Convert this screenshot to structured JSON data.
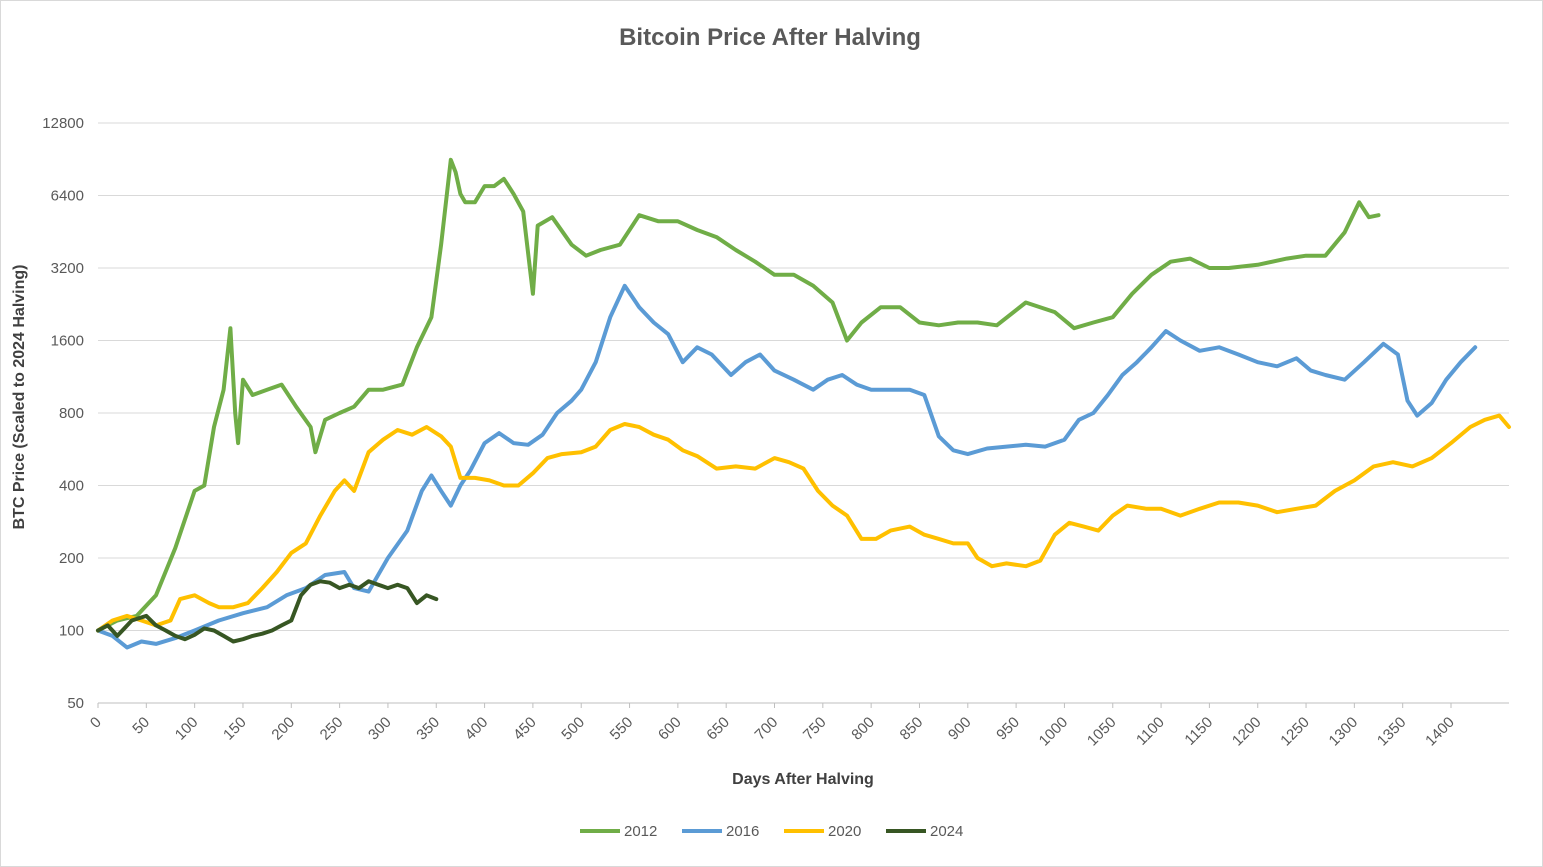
{
  "chart_data": {
    "type": "line",
    "title": "Bitcoin Price After Halving",
    "xlabel": "Days After Halving",
    "ylabel": "BTC Price (Scaled to 2024 Halving)",
    "y_scale": "log2",
    "xlim": [
      0,
      1460
    ],
    "ylim": [
      50,
      12800
    ],
    "x_ticks": [
      0,
      50,
      100,
      150,
      200,
      250,
      300,
      350,
      400,
      450,
      500,
      550,
      600,
      650,
      700,
      750,
      800,
      850,
      900,
      950,
      1000,
      1050,
      1100,
      1150,
      1200,
      1250,
      1300,
      1350,
      1400
    ],
    "x_tick_labels": [
      "0",
      "50",
      "100",
      "150",
      "200",
      "250",
      "300",
      "350",
      "400",
      "450",
      "500",
      "550",
      "600",
      "650",
      "700",
      "750",
      "800",
      "850",
      "900",
      "950",
      "1000",
      "1050",
      "1100",
      "1150",
      "1200",
      "1250",
      "1300",
      "1350",
      "1400"
    ],
    "y_ticks": [
      50,
      100,
      200,
      400,
      800,
      1600,
      3200,
      6400,
      12800
    ],
    "y_tick_labels": [
      "50",
      "100",
      "200",
      "400",
      "800",
      "1600",
      "3200",
      "6400",
      "12800"
    ],
    "grid": true,
    "legend_position": "bottom",
    "series": [
      {
        "name": "2012",
        "color": "#70ad47",
        "points": [
          [
            0,
            100
          ],
          [
            20,
            110
          ],
          [
            40,
            115
          ],
          [
            60,
            140
          ],
          [
            80,
            220
          ],
          [
            100,
            380
          ],
          [
            110,
            400
          ],
          [
            120,
            700
          ],
          [
            130,
            1000
          ],
          [
            137,
            1800
          ],
          [
            142,
            800
          ],
          [
            145,
            600
          ],
          [
            150,
            1100
          ],
          [
            160,
            950
          ],
          [
            175,
            1000
          ],
          [
            190,
            1050
          ],
          [
            205,
            850
          ],
          [
            220,
            700
          ],
          [
            225,
            550
          ],
          [
            235,
            750
          ],
          [
            250,
            800
          ],
          [
            265,
            850
          ],
          [
            280,
            1000
          ],
          [
            295,
            1000
          ],
          [
            315,
            1050
          ],
          [
            330,
            1500
          ],
          [
            345,
            2000
          ],
          [
            355,
            4000
          ],
          [
            365,
            9000
          ],
          [
            370,
            8000
          ],
          [
            375,
            6500
          ],
          [
            380,
            6000
          ],
          [
            390,
            6000
          ],
          [
            400,
            7000
          ],
          [
            410,
            7000
          ],
          [
            420,
            7500
          ],
          [
            430,
            6500
          ],
          [
            440,
            5500
          ],
          [
            450,
            2500
          ],
          [
            455,
            4800
          ],
          [
            470,
            5200
          ],
          [
            490,
            4000
          ],
          [
            505,
            3600
          ],
          [
            520,
            3800
          ],
          [
            540,
            4000
          ],
          [
            560,
            5300
          ],
          [
            580,
            5000
          ],
          [
            600,
            5000
          ],
          [
            620,
            4600
          ],
          [
            640,
            4300
          ],
          [
            660,
            3800
          ],
          [
            680,
            3400
          ],
          [
            700,
            3000
          ],
          [
            720,
            3000
          ],
          [
            740,
            2700
          ],
          [
            760,
            2300
          ],
          [
            775,
            1600
          ],
          [
            790,
            1900
          ],
          [
            810,
            2200
          ],
          [
            830,
            2200
          ],
          [
            850,
            1900
          ],
          [
            870,
            1850
          ],
          [
            890,
            1900
          ],
          [
            910,
            1900
          ],
          [
            930,
            1850
          ],
          [
            960,
            2300
          ],
          [
            990,
            2100
          ],
          [
            1010,
            1800
          ],
          [
            1030,
            1900
          ],
          [
            1050,
            2000
          ],
          [
            1070,
            2500
          ],
          [
            1090,
            3000
          ],
          [
            1110,
            3400
          ],
          [
            1130,
            3500
          ],
          [
            1150,
            3200
          ],
          [
            1170,
            3200
          ],
          [
            1200,
            3300
          ],
          [
            1230,
            3500
          ],
          [
            1250,
            3600
          ],
          [
            1270,
            3600
          ],
          [
            1290,
            4500
          ],
          [
            1305,
            6000
          ],
          [
            1315,
            5200
          ],
          [
            1325,
            5300
          ]
        ]
      },
      {
        "name": "2016",
        "color": "#5b9bd5",
        "points": [
          [
            0,
            100
          ],
          [
            15,
            95
          ],
          [
            30,
            85
          ],
          [
            45,
            90
          ],
          [
            60,
            88
          ],
          [
            80,
            93
          ],
          [
            100,
            100
          ],
          [
            125,
            110
          ],
          [
            150,
            118
          ],
          [
            175,
            125
          ],
          [
            195,
            140
          ],
          [
            215,
            150
          ],
          [
            235,
            170
          ],
          [
            255,
            175
          ],
          [
            265,
            150
          ],
          [
            280,
            145
          ],
          [
            300,
            200
          ],
          [
            320,
            260
          ],
          [
            335,
            380
          ],
          [
            345,
            440
          ],
          [
            355,
            380
          ],
          [
            365,
            330
          ],
          [
            375,
            400
          ],
          [
            385,
            460
          ],
          [
            400,
            600
          ],
          [
            415,
            660
          ],
          [
            430,
            600
          ],
          [
            445,
            590
          ],
          [
            460,
            650
          ],
          [
            475,
            800
          ],
          [
            490,
            900
          ],
          [
            500,
            1000
          ],
          [
            515,
            1300
          ],
          [
            530,
            2000
          ],
          [
            545,
            2700
          ],
          [
            560,
            2200
          ],
          [
            575,
            1900
          ],
          [
            590,
            1700
          ],
          [
            605,
            1300
          ],
          [
            620,
            1500
          ],
          [
            635,
            1400
          ],
          [
            655,
            1150
          ],
          [
            670,
            1300
          ],
          [
            685,
            1400
          ],
          [
            700,
            1200
          ],
          [
            720,
            1100
          ],
          [
            740,
            1000
          ],
          [
            755,
            1100
          ],
          [
            770,
            1150
          ],
          [
            785,
            1050
          ],
          [
            800,
            1000
          ],
          [
            815,
            1000
          ],
          [
            840,
            1000
          ],
          [
            855,
            950
          ],
          [
            870,
            640
          ],
          [
            885,
            560
          ],
          [
            900,
            540
          ],
          [
            920,
            570
          ],
          [
            940,
            580
          ],
          [
            960,
            590
          ],
          [
            980,
            580
          ],
          [
            1000,
            620
          ],
          [
            1015,
            750
          ],
          [
            1030,
            800
          ],
          [
            1045,
            950
          ],
          [
            1060,
            1150
          ],
          [
            1075,
            1300
          ],
          [
            1090,
            1500
          ],
          [
            1105,
            1750
          ],
          [
            1120,
            1600
          ],
          [
            1140,
            1450
          ],
          [
            1160,
            1500
          ],
          [
            1180,
            1400
          ],
          [
            1200,
            1300
          ],
          [
            1220,
            1250
          ],
          [
            1240,
            1350
          ],
          [
            1255,
            1200
          ],
          [
            1270,
            1150
          ],
          [
            1290,
            1100
          ],
          [
            1310,
            1300
          ],
          [
            1330,
            1550
          ],
          [
            1345,
            1400
          ],
          [
            1355,
            900
          ],
          [
            1365,
            780
          ],
          [
            1380,
            880
          ],
          [
            1395,
            1100
          ],
          [
            1410,
            1300
          ],
          [
            1425,
            1500
          ]
        ]
      },
      {
        "name": "2020",
        "color": "#ffc000",
        "points": [
          [
            0,
            100
          ],
          [
            15,
            110
          ],
          [
            30,
            115
          ],
          [
            45,
            110
          ],
          [
            60,
            105
          ],
          [
            75,
            110
          ],
          [
            85,
            135
          ],
          [
            100,
            140
          ],
          [
            115,
            130
          ],
          [
            125,
            125
          ],
          [
            140,
            125
          ],
          [
            155,
            130
          ],
          [
            170,
            150
          ],
          [
            185,
            175
          ],
          [
            200,
            210
          ],
          [
            215,
            230
          ],
          [
            230,
            300
          ],
          [
            245,
            380
          ],
          [
            255,
            420
          ],
          [
            265,
            380
          ],
          [
            280,
            550
          ],
          [
            295,
            620
          ],
          [
            310,
            680
          ],
          [
            325,
            650
          ],
          [
            340,
            700
          ],
          [
            355,
            640
          ],
          [
            365,
            580
          ],
          [
            375,
            430
          ],
          [
            390,
            430
          ],
          [
            405,
            420
          ],
          [
            420,
            400
          ],
          [
            435,
            400
          ],
          [
            450,
            450
          ],
          [
            465,
            520
          ],
          [
            480,
            540
          ],
          [
            500,
            550
          ],
          [
            515,
            580
          ],
          [
            530,
            680
          ],
          [
            545,
            720
          ],
          [
            560,
            700
          ],
          [
            575,
            650
          ],
          [
            590,
            620
          ],
          [
            605,
            560
          ],
          [
            620,
            530
          ],
          [
            640,
            470
          ],
          [
            660,
            480
          ],
          [
            680,
            470
          ],
          [
            700,
            520
          ],
          [
            715,
            500
          ],
          [
            730,
            470
          ],
          [
            745,
            380
          ],
          [
            760,
            330
          ],
          [
            775,
            300
          ],
          [
            790,
            240
          ],
          [
            805,
            240
          ],
          [
            820,
            260
          ],
          [
            840,
            270
          ],
          [
            855,
            250
          ],
          [
            870,
            240
          ],
          [
            885,
            230
          ],
          [
            900,
            230
          ],
          [
            910,
            200
          ],
          [
            925,
            185
          ],
          [
            940,
            190
          ],
          [
            960,
            185
          ],
          [
            975,
            195
          ],
          [
            990,
            250
          ],
          [
            1005,
            280
          ],
          [
            1020,
            270
          ],
          [
            1035,
            260
          ],
          [
            1050,
            300
          ],
          [
            1065,
            330
          ],
          [
            1085,
            320
          ],
          [
            1100,
            320
          ],
          [
            1120,
            300
          ],
          [
            1140,
            320
          ],
          [
            1160,
            340
          ],
          [
            1180,
            340
          ],
          [
            1200,
            330
          ],
          [
            1220,
            310
          ],
          [
            1240,
            320
          ],
          [
            1260,
            330
          ],
          [
            1280,
            380
          ],
          [
            1300,
            420
          ],
          [
            1320,
            480
          ],
          [
            1340,
            500
          ],
          [
            1360,
            480
          ],
          [
            1380,
            520
          ],
          [
            1400,
            600
          ],
          [
            1420,
            700
          ],
          [
            1435,
            750
          ],
          [
            1450,
            780
          ],
          [
            1460,
            700
          ]
        ]
      },
      {
        "name": "2024",
        "color": "#375623",
        "points": [
          [
            0,
            100
          ],
          [
            10,
            105
          ],
          [
            20,
            95
          ],
          [
            35,
            110
          ],
          [
            50,
            115
          ],
          [
            60,
            105
          ],
          [
            70,
            100
          ],
          [
            80,
            95
          ],
          [
            90,
            92
          ],
          [
            100,
            96
          ],
          [
            110,
            102
          ],
          [
            120,
            100
          ],
          [
            130,
            95
          ],
          [
            140,
            90
          ],
          [
            150,
            92
          ],
          [
            160,
            95
          ],
          [
            170,
            97
          ],
          [
            180,
            100
          ],
          [
            190,
            105
          ],
          [
            200,
            110
          ],
          [
            210,
            140
          ],
          [
            220,
            155
          ],
          [
            230,
            160
          ],
          [
            240,
            158
          ],
          [
            250,
            150
          ],
          [
            260,
            155
          ],
          [
            270,
            150
          ],
          [
            280,
            160
          ],
          [
            290,
            155
          ],
          [
            300,
            150
          ],
          [
            310,
            155
          ],
          [
            320,
            150
          ],
          [
            330,
            130
          ],
          [
            340,
            140
          ],
          [
            350,
            135
          ]
        ]
      }
    ]
  }
}
